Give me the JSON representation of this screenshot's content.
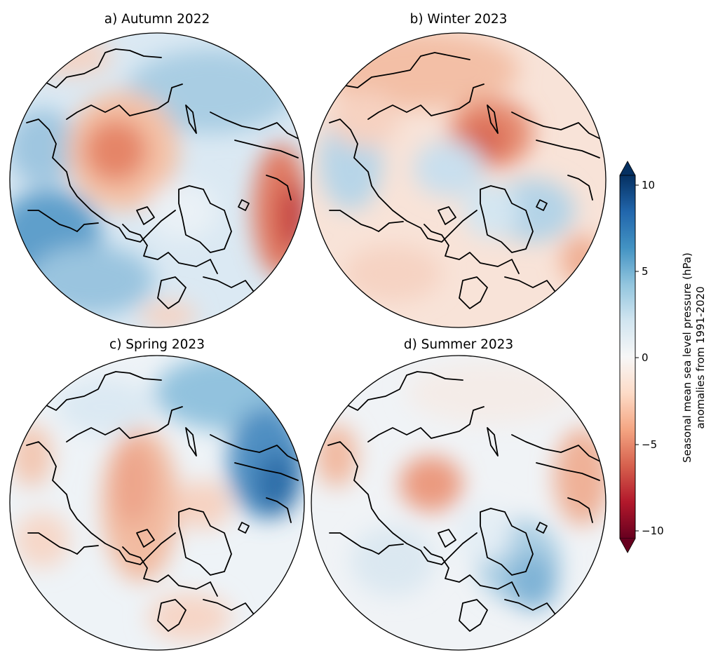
{
  "panels": [
    {
      "id": "a",
      "title": "a) Autumn 2022"
    },
    {
      "id": "b",
      "title": "b) Winter 2023"
    },
    {
      "id": "c",
      "title": "c) Spring 2023"
    },
    {
      "id": "d",
      "title": "d) Summer 2023"
    }
  ],
  "colorbar": {
    "label_line1": "Seasonal mean sea level pressure (hPa)",
    "label_line2": "anomalies from 1991-2020",
    "min": -10,
    "max": 10,
    "ticks": [
      "10",
      "5",
      "0",
      "−5",
      "−10"
    ],
    "colormap": "RdBu_r",
    "colors": [
      "#67001f",
      "#b2182b",
      "#d6604d",
      "#f4a582",
      "#fddbc7",
      "#f7f7f7",
      "#d1e5f0",
      "#92c5de",
      "#4393c3",
      "#2166ac",
      "#053061"
    ],
    "extend": "both"
  }
}
